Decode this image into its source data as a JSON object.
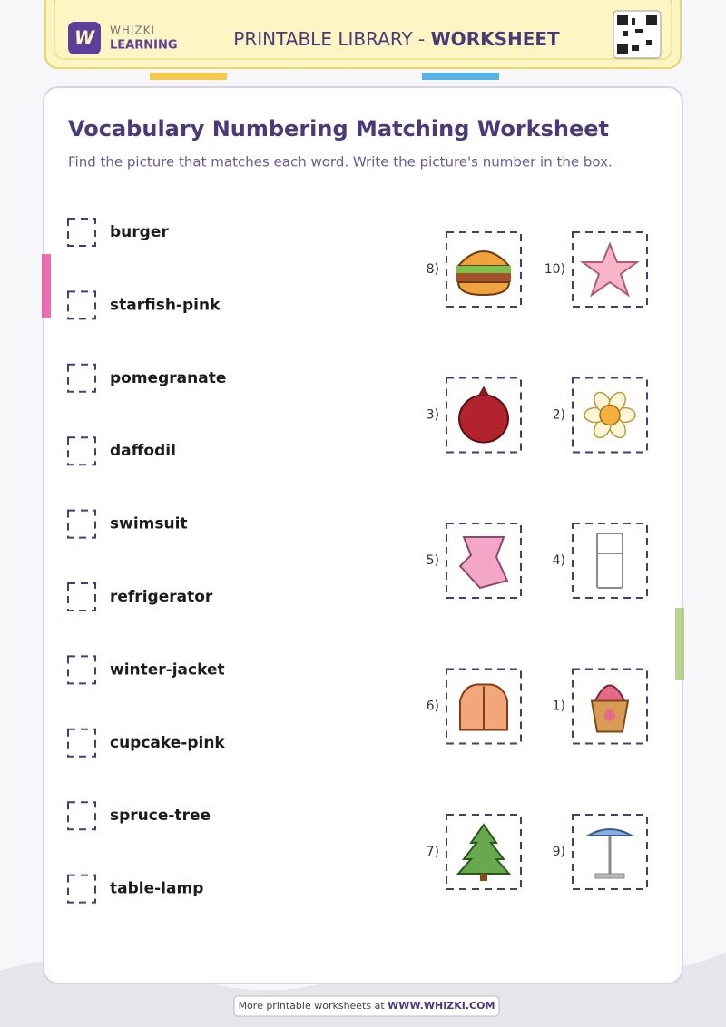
{
  "header": {
    "logo_top": "WHIZKI",
    "logo_bottom": "LEARNING",
    "title_prefix": "PRINTABLE LIBRARY - ",
    "title_bold": "WORKSHEET"
  },
  "worksheet": {
    "title": "Vocabulary Numbering Matching Worksheet",
    "instructions": "Find the picture that matches each word. Write the picture's number in the box.",
    "words": [
      "burger",
      "starfish-pink",
      "pomegranate",
      "daffodil",
      "swimsuit",
      "refrigerator",
      "winter-jacket",
      "cupcake-pink",
      "spruce-tree",
      "table-lamp"
    ],
    "pictures": [
      "8)",
      "10)",
      "3)",
      "2)",
      "5)",
      "4)",
      "6)",
      "1)",
      "7)",
      "9)"
    ]
  },
  "footer": {
    "text": "More printable worksheets at ",
    "link": "WWW.WHIZKI.COM"
  }
}
